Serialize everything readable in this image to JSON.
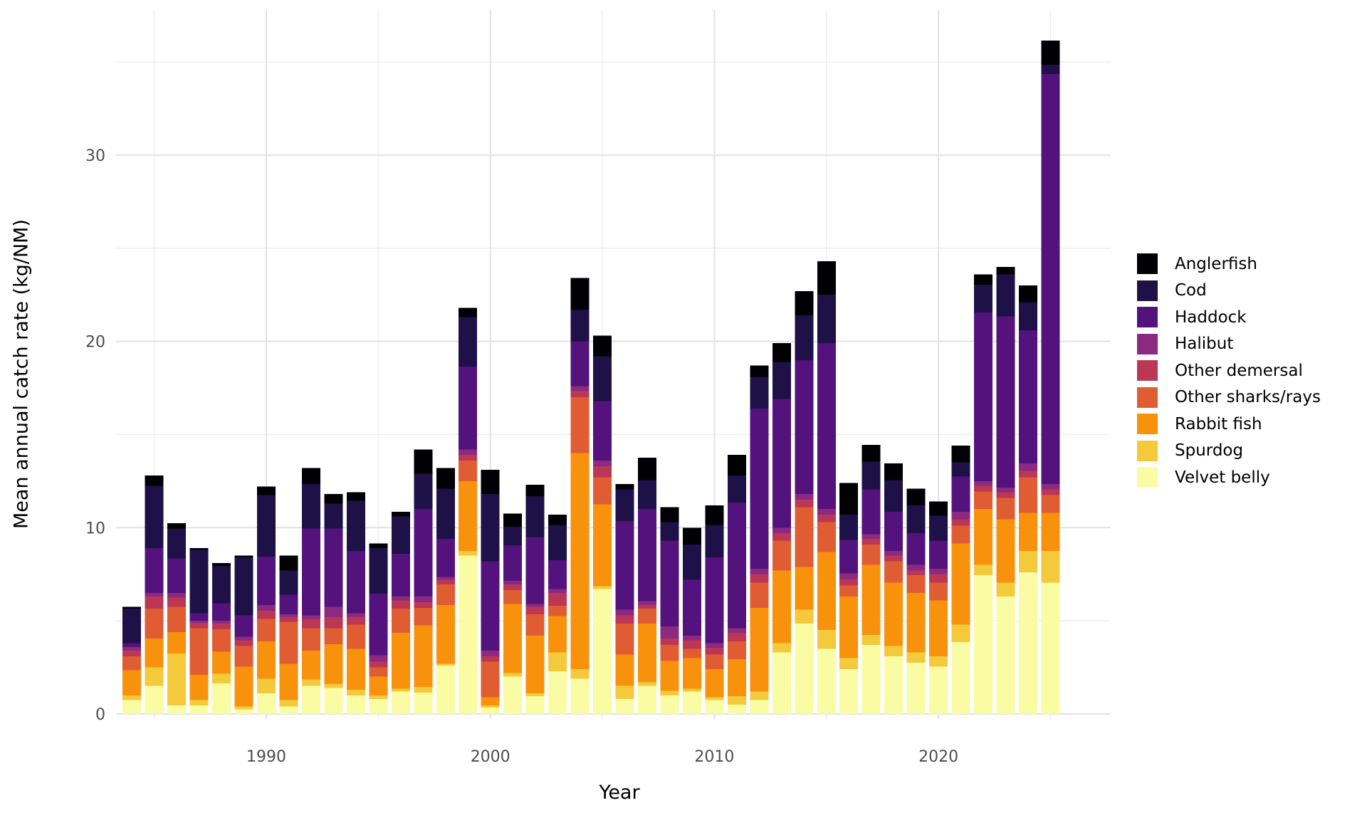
{
  "chart_data": {
    "type": "bar",
    "stacked": true,
    "title": "",
    "xlabel": "Year",
    "ylabel": "Mean annual catch rate (kg/NM)",
    "legend_position": "right",
    "grid": "on",
    "background": "#ffffff",
    "grid_major_color": "#e2e2e2",
    "grid_minor_color": "#ededed",
    "tick_label_color": "#4d4d4d",
    "ylim": [
      0,
      36.5
    ],
    "yticks": [
      0,
      10,
      20,
      30
    ],
    "yminor": [
      5,
      15,
      25,
      35
    ],
    "xticks": [
      1990,
      2000,
      2010,
      2020
    ],
    "xminor": [
      1985,
      1995,
      2005,
      2015,
      2025
    ],
    "years": [
      1984,
      1985,
      1986,
      1987,
      1988,
      1989,
      1990,
      1991,
      1992,
      1993,
      1994,
      1995,
      1996,
      1997,
      1998,
      1999,
      2000,
      2001,
      2002,
      2003,
      2004,
      2005,
      2006,
      2007,
      2008,
      2009,
      2010,
      2011,
      2012,
      2013,
      2014,
      2015,
      2016,
      2017,
      2018,
      2019,
      2020,
      2021,
      2022,
      2023,
      2024,
      2025
    ],
    "series": [
      {
        "name": "Anglerfish",
        "color": "#000004",
        "values": [
          0.1,
          0.55,
          0.3,
          0.1,
          0.15,
          0.1,
          0.45,
          0.8,
          0.85,
          0.5,
          0.45,
          0.25,
          0.25,
          1.3,
          1.1,
          0.5,
          1.3,
          0.7,
          0.6,
          0.55,
          1.7,
          1.1,
          0.3,
          1.2,
          0.8,
          0.9,
          1.05,
          1.1,
          0.6,
          1.0,
          1.3,
          1.8,
          1.7,
          0.9,
          0.9,
          0.9,
          0.75,
          0.9,
          0.55,
          0.4,
          0.9,
          1.3
        ]
      },
      {
        "name": "Cod",
        "color": "#1d1147",
        "values": [
          1.85,
          3.35,
          1.6,
          3.4,
          2.0,
          3.1,
          3.3,
          1.3,
          2.4,
          1.35,
          2.7,
          2.45,
          2.0,
          1.9,
          2.7,
          2.65,
          3.6,
          1.0,
          2.2,
          1.9,
          1.7,
          2.4,
          1.7,
          1.55,
          1.0,
          1.9,
          1.75,
          1.45,
          1.7,
          2.0,
          2.4,
          2.6,
          1.35,
          1.5,
          1.7,
          1.5,
          1.35,
          0.75,
          1.5,
          2.25,
          1.5,
          0.5
        ]
      },
      {
        "name": "Haddock",
        "color": "#53127c",
        "values": [
          0.2,
          2.4,
          1.85,
          0.4,
          0.95,
          1.15,
          2.6,
          1.05,
          4.65,
          4.2,
          3.35,
          3.3,
          2.3,
          4.7,
          2.05,
          4.45,
          4.8,
          1.9,
          3.6,
          1.55,
          2.4,
          3.2,
          4.75,
          4.95,
          4.6,
          3.0,
          4.6,
          6.75,
          8.6,
          6.9,
          7.2,
          8.9,
          1.8,
          2.4,
          2.1,
          1.7,
          1.5,
          1.9,
          9.05,
          9.2,
          7.15,
          22.0
        ]
      },
      {
        "name": "Halibut",
        "color": "#8c2981",
        "values": [
          0.2,
          0.2,
          0.25,
          0.1,
          0.15,
          0.2,
          0.3,
          0.15,
          0.2,
          0.55,
          0.2,
          0.35,
          0.2,
          0.3,
          0.15,
          0.3,
          0.3,
          0.2,
          0.15,
          0.2,
          0.25,
          0.3,
          0.3,
          0.2,
          0.65,
          0.25,
          0.25,
          0.25,
          0.3,
          0.3,
          0.3,
          0.3,
          0.3,
          0.25,
          0.25,
          0.3,
          0.3,
          0.4,
          0.25,
          0.25,
          0.4,
          0.3
        ]
      },
      {
        "name": "Other demersal",
        "color": "#bb3754",
        "values": [
          0.3,
          0.65,
          0.5,
          0.3,
          0.3,
          0.3,
          0.45,
          0.25,
          0.5,
          0.6,
          0.4,
          0.3,
          0.45,
          0.3,
          0.25,
          0.3,
          0.3,
          0.3,
          0.4,
          0.7,
          0.35,
          0.6,
          0.45,
          0.2,
          0.35,
          0.45,
          0.35,
          0.45,
          0.45,
          0.4,
          0.4,
          0.4,
          0.35,
          0.3,
          0.3,
          0.25,
          0.45,
          0.35,
          0.3,
          0.3,
          0.35,
          0.3
        ]
      },
      {
        "name": "Other sharks/rays",
        "color": "#e05c33",
        "values": [
          0.75,
          1.6,
          1.35,
          2.5,
          1.2,
          1.1,
          1.2,
          2.25,
          1.2,
          0.85,
          1.3,
          0.5,
          1.3,
          0.95,
          1.1,
          1.1,
          1.9,
          0.75,
          1.15,
          0.55,
          3.0,
          1.45,
          1.65,
          0.8,
          0.85,
          0.5,
          0.8,
          0.95,
          1.35,
          1.6,
          3.2,
          1.6,
          0.6,
          1.1,
          1.15,
          0.95,
          0.95,
          0.95,
          0.95,
          1.15,
          1.9,
          0.95
        ]
      },
      {
        "name": "Rabbit fish",
        "color": "#f8920c",
        "values": [
          1.35,
          1.55,
          1.15,
          1.35,
          1.2,
          2.15,
          2.0,
          1.95,
          1.55,
          2.15,
          2.2,
          1.0,
          3.0,
          3.3,
          3.15,
          3.75,
          0.45,
          3.7,
          3.1,
          1.95,
          11.6,
          4.4,
          1.7,
          3.15,
          1.6,
          1.65,
          1.5,
          2.0,
          4.5,
          3.9,
          2.3,
          4.2,
          3.3,
          3.75,
          3.4,
          3.2,
          3.0,
          4.35,
          3.0,
          3.4,
          2.05,
          2.05
        ]
      },
      {
        "name": "Spurdog",
        "color": "#f5c93c",
        "values": [
          0.25,
          1.0,
          2.8,
          0.3,
          0.5,
          0.15,
          0.8,
          0.35,
          0.35,
          0.2,
          0.3,
          0.2,
          0.15,
          0.3,
          0.1,
          0.25,
          0.1,
          0.2,
          0.15,
          1.0,
          0.5,
          0.15,
          0.7,
          0.2,
          0.25,
          0.15,
          0.15,
          0.45,
          0.45,
          0.5,
          0.75,
          1.0,
          0.6,
          0.55,
          0.55,
          0.55,
          0.55,
          0.95,
          0.55,
          0.75,
          1.15,
          1.7
        ]
      },
      {
        "name": "Velvet belly",
        "color": "#fafca3",
        "values": [
          0.75,
          1.5,
          0.45,
          0.45,
          1.65,
          0.25,
          1.1,
          0.4,
          1.5,
          1.4,
          1.0,
          0.8,
          1.2,
          1.15,
          2.6,
          8.5,
          0.35,
          2.0,
          0.95,
          2.3,
          1.9,
          6.7,
          0.8,
          1.5,
          1.0,
          1.2,
          0.75,
          0.5,
          0.75,
          3.3,
          4.85,
          3.5,
          2.4,
          3.7,
          3.1,
          2.75,
          2.55,
          3.85,
          7.45,
          6.3,
          7.6,
          7.05
        ]
      }
    ]
  }
}
